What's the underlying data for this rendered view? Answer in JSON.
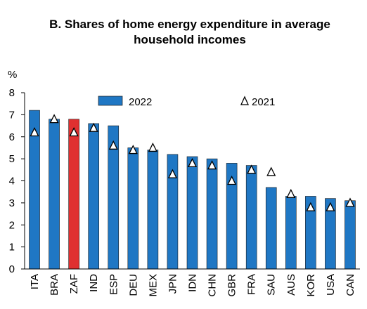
{
  "chart_data": {
    "type": "bar",
    "title": [
      "B. Shares of home energy expenditure in average",
      "household incomes"
    ],
    "ylabel": "%",
    "xlabel": "",
    "ylim": [
      0,
      8
    ],
    "yticks": [
      0,
      1,
      2,
      3,
      4,
      5,
      6,
      7,
      8
    ],
    "grid": false,
    "legend_position": "top",
    "categories": [
      "ITA",
      "BRA",
      "ZAF",
      "IND",
      "ESP",
      "DEU",
      "MEX",
      "JPN",
      "IDN",
      "CHN",
      "GBR",
      "FRA",
      "SAU",
      "AUS",
      "KOR",
      "USA",
      "CAN"
    ],
    "highlight_category": "ZAF",
    "series": [
      {
        "name": "2022",
        "kind": "bar",
        "color": "#1f77c4",
        "values": [
          7.2,
          6.8,
          6.8,
          6.6,
          6.5,
          5.5,
          5.4,
          5.2,
          5.1,
          5.0,
          4.8,
          4.7,
          3.7,
          3.3,
          3.3,
          3.2,
          3.1
        ]
      },
      {
        "name": "2021",
        "kind": "marker",
        "marker": "triangle",
        "values": [
          6.2,
          6.8,
          6.2,
          6.4,
          5.6,
          5.4,
          5.5,
          4.3,
          4.8,
          4.7,
          4.0,
          4.5,
          4.4,
          3.4,
          2.8,
          2.8,
          3.0
        ]
      }
    ],
    "colors": {
      "bar": "#1f77c4",
      "highlight": "#e03030",
      "bar_outline": "#1a1a1a"
    }
  }
}
